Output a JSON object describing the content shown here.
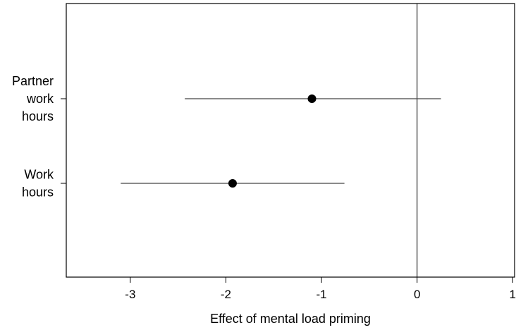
{
  "chart_data": {
    "type": "scatter",
    "title": "",
    "xlabel": "Effect of mental load priming",
    "ylabel": "",
    "xlim": [
      -3.67,
      1.02
    ],
    "xticks": [
      {
        "value": -3,
        "label": "-3"
      },
      {
        "value": -2,
        "label": "-2"
      },
      {
        "value": -1,
        "label": "-1"
      },
      {
        "value": 0,
        "label": "0"
      },
      {
        "value": 1,
        "label": "1"
      }
    ],
    "reference_line": 0,
    "grid": false,
    "legend": "none",
    "points": [
      {
        "category_lines": [
          "Partner",
          "work",
          "hours"
        ],
        "estimate": -1.1,
        "ci_low": -2.43,
        "ci_high": 0.25
      },
      {
        "category_lines": [
          "Work",
          "hours"
        ],
        "estimate": -1.93,
        "ci_low": -3.1,
        "ci_high": -0.76
      }
    ],
    "colors": {
      "marker": "#000000",
      "line": "#444444",
      "axis": "#000000"
    }
  }
}
